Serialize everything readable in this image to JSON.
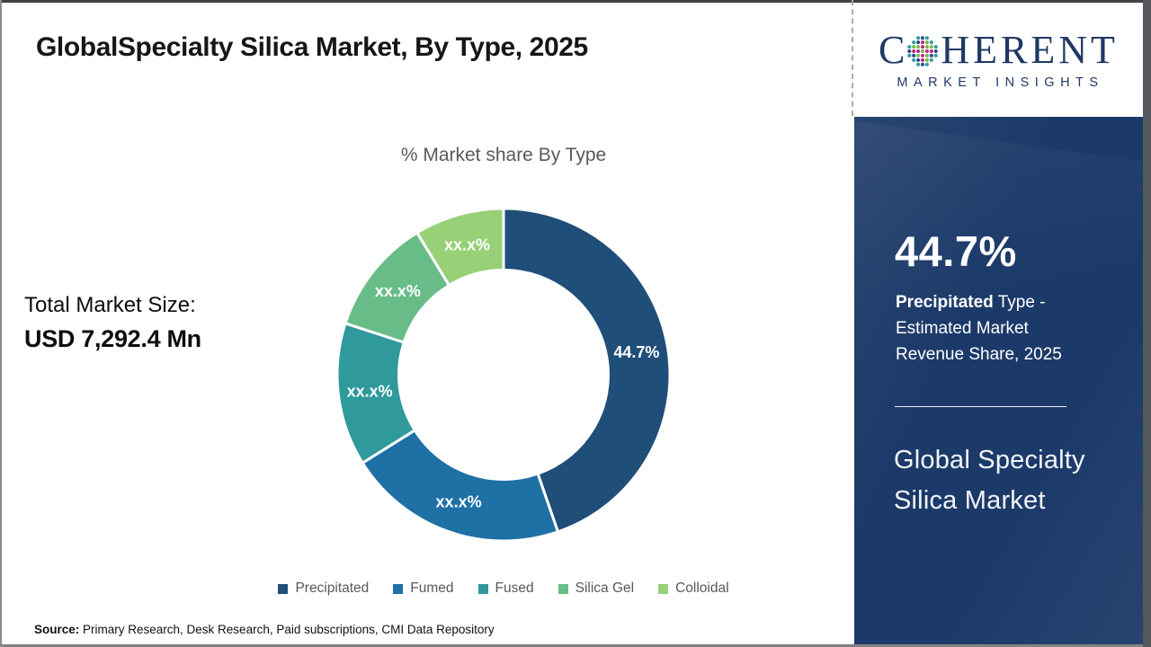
{
  "header": {
    "title": "GlobalSpecialty Silica Market, By Type, 2025"
  },
  "logo": {
    "brand_c": "C",
    "brand_rest": "HERENT",
    "subtitle": "MARKET INSIGHTS",
    "text_color": "#1f3864"
  },
  "main": {
    "chart_title": "% Market share By Type",
    "total_size_label": "Total Market Size:",
    "total_size_value": "USD 7,292.4 Mn",
    "source_label": "Source:",
    "source_text": " Primary Research, Desk Research, Paid subscriptions, CMI Data Repository"
  },
  "chart_data": {
    "type": "pie",
    "subtype": "donut",
    "title": "% Market share By Type",
    "categories": [
      "Precipitated",
      "Fumed",
      "Fused",
      "Silica Gel",
      "Colloidal"
    ],
    "values": [
      44.7,
      21.4,
      13.9,
      11.3,
      8.7
    ],
    "slice_labels": [
      "44.7%",
      "xx.x%",
      "xx.x%",
      "xx.x%",
      "xx.x%"
    ],
    "colors": [
      "#1f4e79",
      "#1e70a5",
      "#2f999b",
      "#68bc88",
      "#97d077"
    ],
    "start_angle_deg": 0,
    "direction": "clockwise",
    "inner_radius_ratio": 0.63,
    "legend_position": "bottom",
    "legend_text_color": "#595959"
  },
  "side_panel": {
    "stat_value": "44.7%",
    "desc_bold": "Precipitated",
    "desc_rest": " Type -",
    "desc_line2": "Estimated Market",
    "desc_line3": "Revenue Share, 2025",
    "panel_title": "Global Specialty Silica Market",
    "bg_color": "#1c3a69"
  }
}
